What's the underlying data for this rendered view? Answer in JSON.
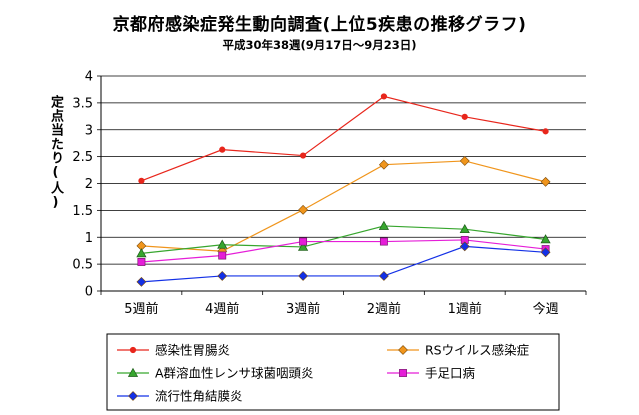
{
  "chart_data": {
    "type": "line",
    "title": "京都府感染症発生動向調査(上位5疾患の推移グラフ)",
    "subtitle": "平成30年38週(9月17日～9月23日)",
    "ylabel": "定点当たり(人)",
    "xlabel": "",
    "ylim": [
      0,
      4
    ],
    "yticks": [
      "0",
      "0.5",
      "1",
      "1.5",
      "2",
      "2.5",
      "3",
      "3.5",
      "4"
    ],
    "ytick_values": [
      0,
      0.5,
      1,
      1.5,
      2,
      2.5,
      3,
      3.5,
      4
    ],
    "categories": [
      "5週前",
      "4週前",
      "3週前",
      "2週前",
      "1週前",
      "今週"
    ],
    "grid": true,
    "legend_position": "bottom",
    "series": [
      {
        "name": "感染性胃腸炎",
        "color": "#e8261c",
        "marker": "circle",
        "values": [
          2.05,
          2.63,
          2.52,
          3.62,
          3.24,
          2.97
        ]
      },
      {
        "name": "RSウイルス感染症",
        "color": "#f0951c",
        "marker": "diamond",
        "values": [
          0.84,
          0.74,
          1.51,
          2.35,
          2.42,
          2.03
        ]
      },
      {
        "name": "A群溶血性レンサ球菌咽頭炎",
        "color": "#37a62e",
        "marker": "triangle",
        "values": [
          0.7,
          0.86,
          0.82,
          1.21,
          1.15,
          0.96
        ]
      },
      {
        "name": "手足口病",
        "color": "#e51ed8",
        "marker": "square",
        "values": [
          0.54,
          0.66,
          0.92,
          0.92,
          0.95,
          0.78
        ]
      },
      {
        "name": "流行性角結膜炎",
        "color": "#1330e6",
        "marker": "diamond",
        "values": [
          0.17,
          0.28,
          0.28,
          0.28,
          0.83,
          0.72
        ]
      }
    ]
  }
}
